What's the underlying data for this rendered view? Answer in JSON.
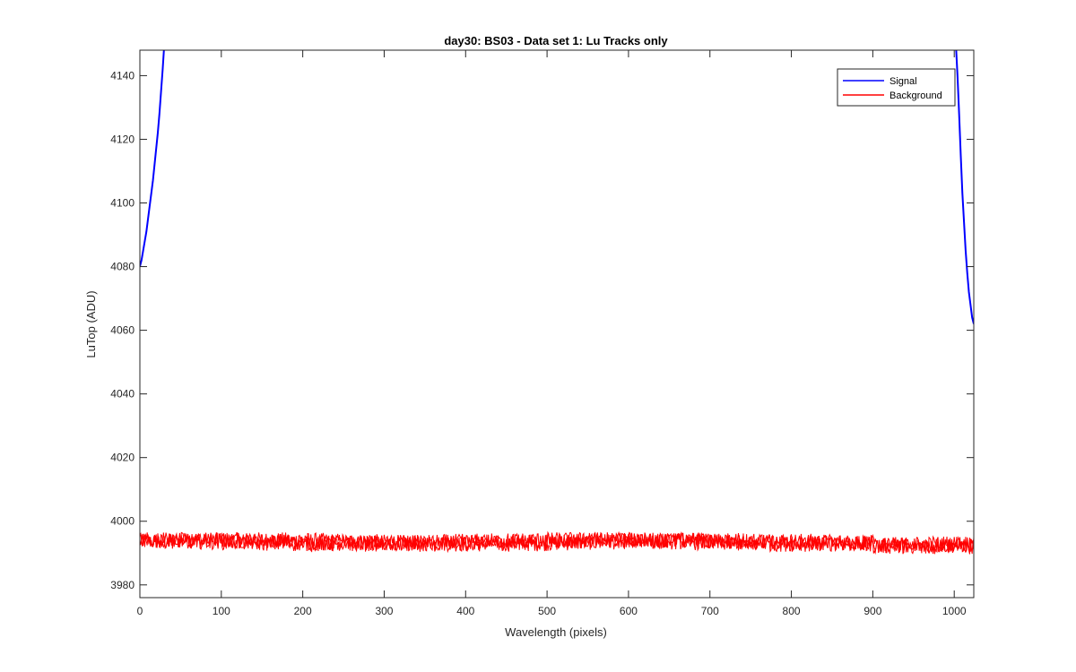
{
  "chart_data": {
    "type": "line",
    "title": "day30: BS03 - Data set 1: Lu Tracks only",
    "xlabel": "Wavelength (pixels)",
    "ylabel": "LuTop (ADU)",
    "xlim": [
      0,
      1024
    ],
    "ylim": [
      3976,
      4148
    ],
    "xticks": [
      0,
      100,
      200,
      300,
      400,
      500,
      600,
      700,
      800,
      900,
      1000
    ],
    "yticks": [
      3980,
      4000,
      4020,
      4040,
      4060,
      4080,
      4100,
      4120,
      4140
    ],
    "grid": false,
    "legend_position": "top-right",
    "series": [
      {
        "name": "Signal",
        "color": "#0000ff",
        "segments": [
          {
            "x": [
              0,
              2,
              4,
              6,
              8,
              10,
              12,
              14,
              16,
              18,
              20,
              22,
              24,
              26,
              28,
              30
            ],
            "y": [
              4080,
              4082,
              4085,
              4088,
              4091,
              4095,
              4099,
              4103,
              4107,
              4112,
              4117,
              4122,
              4128,
              4135,
              4142,
              4150
            ]
          },
          {
            "x": [
              1002,
              1004,
              1006,
              1008,
              1010,
              1012,
              1014,
              1016,
              1018,
              1020,
              1022,
              1024
            ],
            "y": [
              4150,
              4140,
              4128,
              4115,
              4103,
              4094,
              4085,
              4078,
              4072,
              4068,
              4064,
              4062
            ]
          }
        ]
      },
      {
        "name": "Background",
        "color": "#ff0000",
        "noise": {
          "baseline": 3993.5,
          "amplitude": 2.5,
          "traces": 3,
          "x_start": 0,
          "x_end": 1024,
          "x_step": 1
        }
      }
    ]
  }
}
